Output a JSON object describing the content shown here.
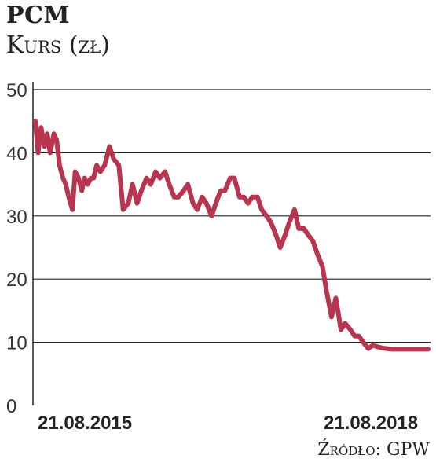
{
  "header": {
    "title": "PCM",
    "subtitle": "Kurs (zł)"
  },
  "source": "Źródło: GPW",
  "chart_data": {
    "type": "line",
    "title": "PCM",
    "ylabel": "Kurs (zł)",
    "xlabel": "",
    "ylim": [
      0,
      50
    ],
    "yticks": [
      0,
      10,
      20,
      30,
      40,
      50
    ],
    "xtick_labels": [
      "21.08.2015",
      "21.08.2018"
    ],
    "grid": true,
    "line_color": "#b8354f",
    "x": [
      "2015-04-01",
      "2015-04-10",
      "2015-04-20",
      "2015-05-01",
      "2015-05-10",
      "2015-05-20",
      "2015-06-01",
      "2015-06-10",
      "2015-06-20",
      "2015-07-01",
      "2015-07-10",
      "2015-07-20",
      "2015-08-01",
      "2015-08-10",
      "2015-08-21",
      "2015-09-01",
      "2015-09-10",
      "2015-09-20",
      "2015-10-01",
      "2015-10-10",
      "2015-10-20",
      "2015-11-01",
      "2015-11-15",
      "2015-12-01",
      "2015-12-15",
      "2016-01-01",
      "2016-01-15",
      "2016-02-01",
      "2016-02-15",
      "2016-03-01",
      "2016-03-15",
      "2016-04-01",
      "2016-04-15",
      "2016-05-01",
      "2016-05-15",
      "2016-06-01",
      "2016-06-15",
      "2016-07-01",
      "2016-07-15",
      "2016-08-01",
      "2016-08-15",
      "2016-09-01",
      "2016-09-15",
      "2016-10-01",
      "2016-10-15",
      "2016-11-01",
      "2016-11-15",
      "2016-12-01",
      "2016-12-15",
      "2017-01-01",
      "2017-01-15",
      "2017-02-01",
      "2017-02-15",
      "2017-03-01",
      "2017-03-15",
      "2017-04-01",
      "2017-04-15",
      "2017-05-01",
      "2017-05-15",
      "2017-06-01",
      "2017-06-15",
      "2017-07-01",
      "2017-07-15",
      "2017-08-01",
      "2017-08-15",
      "2017-09-01",
      "2017-09-15",
      "2017-10-01",
      "2017-10-15",
      "2017-11-01",
      "2017-11-15",
      "2017-12-01",
      "2017-12-15",
      "2018-01-01",
      "2018-01-15",
      "2018-02-01",
      "2018-02-15",
      "2018-03-01",
      "2018-03-15",
      "2018-04-01",
      "2018-04-15",
      "2018-05-01",
      "2018-05-15",
      "2018-06-01",
      "2018-06-15",
      "2018-07-01",
      "2018-07-15",
      "2018-08-01",
      "2018-08-21",
      "2018-09-01",
      "2018-09-15",
      "2018-10-01",
      "2018-10-15"
    ],
    "series": [
      {
        "values": [
          45,
          40,
          44,
          41,
          43,
          40,
          43,
          42,
          38,
          36,
          35,
          33,
          31,
          37,
          36,
          34,
          36,
          35,
          36,
          36,
          38,
          37,
          38,
          41,
          39,
          38,
          31,
          32,
          35,
          32,
          34,
          36,
          35,
          37,
          36,
          37,
          35,
          33,
          33,
          34,
          35,
          32,
          31,
          33,
          32,
          30,
          32,
          34,
          34,
          36,
          36,
          33,
          33,
          32,
          33,
          33,
          31,
          30,
          29,
          27,
          25,
          27,
          29,
          31,
          28,
          28,
          27,
          26,
          24,
          22,
          18,
          14,
          17,
          12,
          13,
          12,
          11,
          11,
          10,
          9,
          9.5,
          9.3,
          9.1,
          9.0,
          8.9,
          8.9,
          8.9,
          8.9,
          8.9,
          8.9,
          8.9,
          8.9,
          8.9
        ]
      }
    ]
  }
}
